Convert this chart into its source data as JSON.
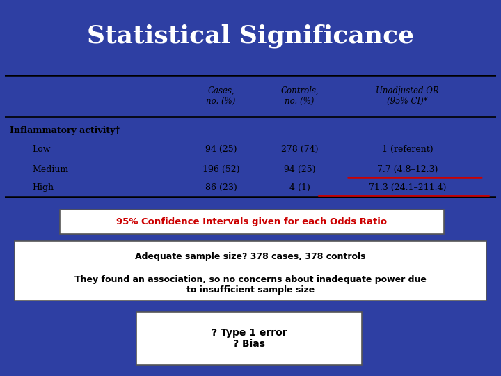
{
  "title": "Statistical Significance",
  "title_color": "#FFFFFF",
  "title_bg_color": "#1E2B6E",
  "slide_bg_color": "#2E3FA3",
  "table_bg_color": "#FFFFFF",
  "header_col1": "",
  "header_col2": "Cases,\nno. (%)",
  "header_col3": "Controls,\nno. (%)",
  "header_col4": "Unadjusted OR\n(95% CI)*",
  "row0": [
    "Inflammatory activity†",
    "",
    "",
    ""
  ],
  "row1": [
    "Low",
    "94 (25)",
    "278 (74)",
    "1 (referent)"
  ],
  "row2": [
    "Medium",
    "196 (52)",
    "94 (25)",
    "7.7 (4.8–12.3)"
  ],
  "row3": [
    "High",
    "86 (23)",
    "4 (1)",
    "71.3 (24.1–211.4)"
  ],
  "box1_text": "95% Confidence Intervals given for each Odds Ratio",
  "box1_text_color": "#CC0000",
  "box2_line1": "Adequate sample size? 378 cases, 378 controls",
  "box2_line2": "They found an association, so no concerns about inadequate power due\nto insufficient sample size",
  "box3_text": "? Type 1 error\n? Bias",
  "underline_color": "#CC0000"
}
